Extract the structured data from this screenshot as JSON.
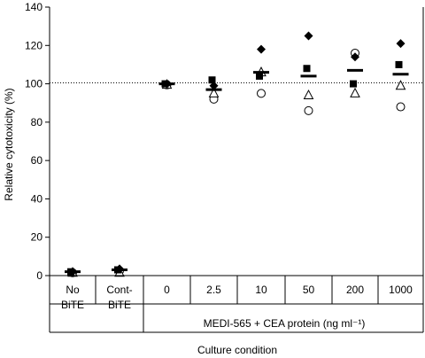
{
  "chart_data": {
    "type": "scatter",
    "title": "",
    "ylabel": "Relative cytotoxicity (%)",
    "xlabel": "Culture condition",
    "group_label": "MEDI-565 + CEA protein (ng ml⁻¹)",
    "ylim": [
      0,
      140
    ],
    "yticks": [
      0,
      20,
      40,
      60,
      80,
      100,
      120,
      140
    ],
    "reference_line": 100.5,
    "categories": [
      [
        "No",
        "BiTE"
      ],
      [
        "Cont-",
        "BiTE"
      ],
      [
        "0"
      ],
      [
        "2.5"
      ],
      [
        "10"
      ],
      [
        "50"
      ],
      [
        "200"
      ],
      [
        "1000"
      ]
    ],
    "series": [
      {
        "marker": "diamond-filled",
        "values": [
          2,
          3.5,
          100,
          99,
          118,
          125,
          114,
          121
        ]
      },
      {
        "marker": "square-filled",
        "values": [
          2,
          3,
          100,
          102,
          104,
          108,
          100,
          110
        ]
      },
      {
        "marker": "triangle-open",
        "values": [
          1.5,
          1.5,
          99.5,
          95,
          106,
          94,
          95,
          99
        ]
      },
      {
        "marker": "circle-open",
        "values": [
          1.5,
          2.5,
          99.5,
          92,
          95,
          86,
          116,
          88
        ]
      }
    ],
    "means": [
      2,
      3,
      100,
      97,
      106,
      104,
      107,
      105
    ],
    "grid": false,
    "legend": "none"
  }
}
